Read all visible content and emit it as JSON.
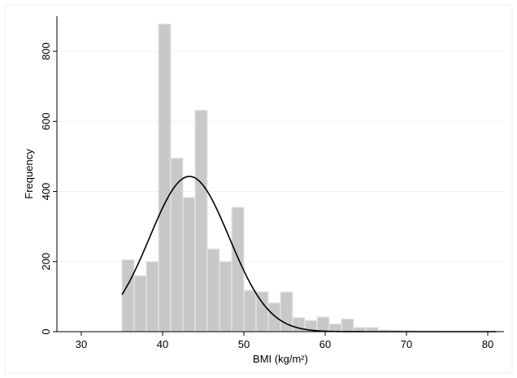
{
  "chart_data": {
    "type": "histogram",
    "xlabel": "BMI (kg/m²)",
    "ylabel": "Frequency",
    "xlim": [
      27,
      82
    ],
    "ylim": [
      0,
      900
    ],
    "xticks": [
      30,
      40,
      50,
      60,
      70,
      80
    ],
    "yticks": [
      0,
      200,
      400,
      600,
      800
    ],
    "grid": "horizontal",
    "bar_color": "#c8c8c8",
    "bar_edge_color": "#e6e6e6",
    "curve_color": "#000000",
    "bin_width": 1.5,
    "bins": [
      {
        "x0": 35.0,
        "count": 205
      },
      {
        "x0": 36.5,
        "count": 160
      },
      {
        "x0": 38.0,
        "count": 200
      },
      {
        "x0": 39.5,
        "count": 878
      },
      {
        "x0": 41.0,
        "count": 495
      },
      {
        "x0": 42.5,
        "count": 383
      },
      {
        "x0": 44.0,
        "count": 632
      },
      {
        "x0": 45.5,
        "count": 236
      },
      {
        "x0": 47.0,
        "count": 200
      },
      {
        "x0": 48.5,
        "count": 355
      },
      {
        "x0": 50.0,
        "count": 118
      },
      {
        "x0": 51.5,
        "count": 114
      },
      {
        "x0": 53.0,
        "count": 82
      },
      {
        "x0": 54.5,
        "count": 113
      },
      {
        "x0": 56.0,
        "count": 40
      },
      {
        "x0": 57.5,
        "count": 32
      },
      {
        "x0": 59.0,
        "count": 42
      },
      {
        "x0": 60.5,
        "count": 22
      },
      {
        "x0": 62.0,
        "count": 36
      },
      {
        "x0": 63.5,
        "count": 12
      },
      {
        "x0": 65.0,
        "count": 12
      },
      {
        "x0": 66.5,
        "count": 5
      },
      {
        "x0": 68.0,
        "count": 4
      },
      {
        "x0": 69.5,
        "count": 3
      },
      {
        "x0": 71.0,
        "count": 2
      },
      {
        "x0": 72.5,
        "count": 2
      },
      {
        "x0": 74.0,
        "count": 1
      },
      {
        "x0": 75.5,
        "count": 1
      },
      {
        "x0": 77.0,
        "count": 1
      },
      {
        "x0": 78.5,
        "count": 1
      },
      {
        "x0": 80.0,
        "count": 1
      }
    ],
    "normal_curve": {
      "mean": 43.3,
      "sd": 4.9,
      "peak": 443,
      "x_start": 35,
      "x_end": 81
    }
  }
}
